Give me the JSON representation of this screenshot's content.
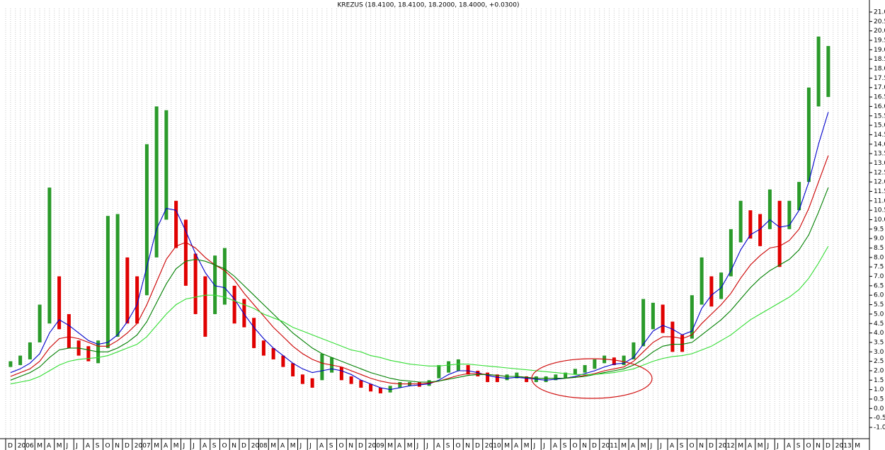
{
  "chart_data": {
    "type": "candlestick",
    "title": "KREZUS (18.4100, 18.4100, 18.2000, 18.4000, +0.0300)",
    "categories": [
      "D",
      "2006",
      null,
      "M",
      "A",
      "M",
      "J",
      "J",
      "A",
      "S",
      "O",
      "N",
      "D",
      "2007",
      null,
      "M",
      "A",
      "M",
      "J",
      "J",
      "A",
      "S",
      "O",
      "N",
      "D",
      "2008",
      null,
      "M",
      "A",
      "M",
      "J",
      "J",
      "A",
      "S",
      "O",
      "N",
      "D",
      "2009",
      null,
      "M",
      "A",
      "M",
      "J",
      "J",
      "A",
      "S",
      "O",
      "N",
      "D",
      "2010",
      null,
      "M",
      "A",
      "M",
      "J",
      "J",
      "A",
      "S",
      "O",
      "N",
      "D",
      "2011",
      null,
      "M",
      "A",
      "M",
      "J",
      "J",
      "A",
      "S",
      "O",
      "N",
      "D",
      "2012",
      null,
      "M",
      "A",
      "M",
      "J",
      "J",
      "A",
      "S",
      "O",
      "N",
      "D",
      "2013",
      null,
      "M"
    ],
    "high": [
      2.5,
      2.8,
      3.5,
      5.5,
      11.7,
      7.0,
      5.0,
      3.6,
      3.3,
      3.6,
      10.2,
      10.3,
      8.0,
      7.0,
      14.0,
      16.0,
      15.8,
      11.0,
      10.0,
      8.2,
      7.0,
      8.1,
      8.5,
      6.5,
      5.8,
      4.8,
      3.6,
      3.2,
      2.8,
      2.4,
      1.8,
      1.6,
      2.9,
      2.7,
      2.2,
      1.7,
      1.5,
      1.3,
      1.1,
      1.2,
      1.4,
      1.4,
      1.4,
      1.5,
      2.3,
      2.5,
      2.6,
      2.3,
      2.0,
      1.9,
      1.8,
      1.8,
      1.9,
      1.7,
      1.7,
      1.7,
      1.8,
      1.9,
      2.1,
      2.3,
      2.6,
      2.8,
      2.7,
      2.8,
      3.5,
      5.8,
      5.6,
      5.5,
      4.6,
      3.9,
      6.0,
      8.0,
      7.0,
      7.2,
      9.5,
      11.0,
      10.5,
      10.3,
      11.6,
      11.0,
      11.0,
      12.0,
      17.0,
      19.7,
      19.2,
      null,
      null,
      null
    ],
    "low": [
      2.2,
      2.3,
      2.6,
      3.5,
      4.5,
      4.2,
      3.2,
      2.8,
      2.5,
      2.4,
      3.2,
      3.8,
      4.5,
      4.5,
      6.0,
      8.0,
      10.0,
      8.5,
      6.5,
      5.0,
      3.8,
      5.0,
      5.5,
      4.5,
      4.3,
      3.2,
      2.8,
      2.6,
      2.2,
      1.7,
      1.3,
      1.1,
      1.5,
      1.9,
      1.5,
      1.3,
      1.1,
      0.9,
      0.8,
      0.85,
      1.1,
      1.2,
      1.15,
      1.2,
      1.6,
      1.9,
      2.0,
      1.8,
      1.7,
      1.4,
      1.4,
      1.5,
      1.6,
      1.4,
      1.4,
      1.4,
      1.5,
      1.6,
      1.8,
      1.9,
      2.1,
      2.4,
      2.3,
      2.3,
      2.6,
      3.3,
      4.2,
      4.0,
      3.0,
      3.0,
      3.7,
      5.5,
      5.4,
      5.8,
      7.0,
      8.8,
      9.0,
      8.6,
      9.5,
      7.5,
      9.5,
      10.5,
      12.0,
      16.0,
      16.5,
      null,
      null,
      null
    ],
    "up_color": "#2a9a2a",
    "down_color": "#e00000",
    "series": [
      {
        "color": "#0000cc",
        "values": [
          1.9,
          2.1,
          2.4,
          2.9,
          4.0,
          4.7,
          4.4,
          4.0,
          3.6,
          3.4,
          3.5,
          3.9,
          4.6,
          5.5,
          7.5,
          9.5,
          10.6,
          10.5,
          9.4,
          8.2,
          7.2,
          6.5,
          6.4,
          5.8,
          5.0,
          4.3,
          3.7,
          3.2,
          2.8,
          2.4,
          2.1,
          1.9,
          2.0,
          2.1,
          2.0,
          1.8,
          1.5,
          1.3,
          1.1,
          1.0,
          1.1,
          1.2,
          1.25,
          1.3,
          1.5,
          1.8,
          2.0,
          2.0,
          1.9,
          1.75,
          1.65,
          1.6,
          1.65,
          1.6,
          1.55,
          1.5,
          1.55,
          1.6,
          1.7,
          1.85,
          2.0,
          2.2,
          2.35,
          2.4,
          2.7,
          3.4,
          4.1,
          4.4,
          4.2,
          3.9,
          4.1,
          5.3,
          6.0,
          6.4,
          7.3,
          8.4,
          9.2,
          9.5,
          10.0,
          9.6,
          9.7,
          10.5,
          12.0,
          14.0,
          15.7,
          null,
          null,
          null
        ]
      },
      {
        "color": "#cc0000",
        "values": [
          1.7,
          1.9,
          2.1,
          2.5,
          3.2,
          3.7,
          3.8,
          3.7,
          3.5,
          3.3,
          3.3,
          3.6,
          4.0,
          4.5,
          5.5,
          6.7,
          7.9,
          8.6,
          8.8,
          8.5,
          8.0,
          7.6,
          7.3,
          6.8,
          6.1,
          5.5,
          4.9,
          4.3,
          3.8,
          3.3,
          2.9,
          2.6,
          2.4,
          2.3,
          2.2,
          2.0,
          1.8,
          1.6,
          1.45,
          1.35,
          1.3,
          1.3,
          1.3,
          1.35,
          1.45,
          1.6,
          1.75,
          1.85,
          1.85,
          1.8,
          1.75,
          1.7,
          1.7,
          1.65,
          1.6,
          1.6,
          1.6,
          1.6,
          1.65,
          1.75,
          1.85,
          2.0,
          2.1,
          2.2,
          2.5,
          3.0,
          3.5,
          3.8,
          3.8,
          3.7,
          3.9,
          4.5,
          5.0,
          5.5,
          6.1,
          6.9,
          7.6,
          8.1,
          8.5,
          8.6,
          8.9,
          9.5,
          10.6,
          12.0,
          13.4,
          null,
          null,
          null
        ]
      },
      {
        "color": "#008000",
        "values": [
          1.5,
          1.7,
          1.9,
          2.2,
          2.7,
          3.1,
          3.2,
          3.2,
          3.1,
          3.0,
          3.0,
          3.2,
          3.5,
          3.9,
          4.6,
          5.6,
          6.6,
          7.4,
          7.8,
          7.9,
          7.8,
          7.6,
          7.4,
          7.0,
          6.5,
          6.0,
          5.5,
          5.0,
          4.5,
          4.0,
          3.6,
          3.2,
          2.9,
          2.7,
          2.5,
          2.3,
          2.1,
          1.9,
          1.75,
          1.6,
          1.5,
          1.45,
          1.4,
          1.4,
          1.45,
          1.55,
          1.65,
          1.75,
          1.8,
          1.8,
          1.75,
          1.7,
          1.7,
          1.65,
          1.6,
          1.6,
          1.6,
          1.6,
          1.65,
          1.7,
          1.8,
          1.9,
          2.0,
          2.1,
          2.3,
          2.6,
          3.0,
          3.3,
          3.4,
          3.4,
          3.5,
          3.9,
          4.3,
          4.7,
          5.2,
          5.8,
          6.4,
          6.9,
          7.3,
          7.6,
          7.9,
          8.4,
          9.2,
          10.4,
          11.7,
          null,
          null,
          null
        ]
      },
      {
        "color": "#33dd33",
        "values": [
          1.3,
          1.4,
          1.5,
          1.7,
          2.0,
          2.3,
          2.5,
          2.6,
          2.65,
          2.7,
          2.8,
          3.0,
          3.2,
          3.4,
          3.8,
          4.4,
          5.0,
          5.5,
          5.8,
          5.9,
          6.0,
          6.0,
          5.9,
          5.7,
          5.5,
          5.3,
          5.0,
          4.8,
          4.6,
          4.3,
          4.1,
          3.9,
          3.7,
          3.5,
          3.3,
          3.1,
          3.0,
          2.8,
          2.7,
          2.55,
          2.45,
          2.35,
          2.3,
          2.25,
          2.25,
          2.3,
          2.35,
          2.35,
          2.3,
          2.25,
          2.2,
          2.15,
          2.1,
          2.05,
          2.0,
          1.95,
          1.9,
          1.85,
          1.8,
          1.8,
          1.8,
          1.85,
          1.9,
          2.0,
          2.1,
          2.3,
          2.5,
          2.65,
          2.75,
          2.8,
          2.9,
          3.1,
          3.3,
          3.6,
          3.9,
          4.3,
          4.7,
          5.0,
          5.3,
          5.6,
          5.9,
          6.3,
          6.9,
          7.7,
          8.6,
          null,
          null,
          null
        ]
      }
    ],
    "ylim": [
      -1,
      21
    ],
    "yticks": [
      {
        "value": 21,
        "label": "21.0"
      },
      {
        "value": 20.5,
        "label": "20.5"
      },
      {
        "value": 20,
        "label": "20.0"
      },
      {
        "value": 19.5,
        "label": "19.5"
      },
      {
        "value": 19,
        "label": "19.0"
      },
      {
        "value": 18.5,
        "label": "18.5"
      },
      {
        "value": 18,
        "label": "18.0"
      },
      {
        "value": 17.5,
        "label": "17.5"
      },
      {
        "value": 17,
        "label": "17.0"
      },
      {
        "value": 16.5,
        "label": "16.5"
      },
      {
        "value": 16,
        "label": "16.0"
      },
      {
        "value": 15.5,
        "label": "15.5"
      },
      {
        "value": 15,
        "label": "15.0"
      },
      {
        "value": 14.5,
        "label": "14.5"
      },
      {
        "value": 14,
        "label": "14.0"
      },
      {
        "value": 13.5,
        "label": "13.5"
      },
      {
        "value": 13,
        "label": "13.0"
      },
      {
        "value": 12.5,
        "label": "12.5"
      },
      {
        "value": 12,
        "label": "12.0"
      },
      {
        "value": 11.5,
        "label": "11.5"
      },
      {
        "value": 11,
        "label": "11.0"
      },
      {
        "value": 10.5,
        "label": "10.5"
      },
      {
        "value": 10,
        "label": "10.0"
      },
      {
        "value": 9.5,
        "label": "9.5"
      },
      {
        "value": 9,
        "label": "9.0"
      },
      {
        "value": 8.5,
        "label": "8.5"
      },
      {
        "value": 8,
        "label": "8.0"
      },
      {
        "value": 7.5,
        "label": "7.5"
      },
      {
        "value": 7,
        "label": "7.0"
      },
      {
        "value": 6.5,
        "label": "6.5"
      },
      {
        "value": 6,
        "label": "6.0"
      },
      {
        "value": 5.5,
        "label": "5.5"
      },
      {
        "value": 5,
        "label": "5.0"
      },
      {
        "value": 4.5,
        "label": "4.5"
      },
      {
        "value": 4,
        "label": "4.0"
      },
      {
        "value": 3.5,
        "label": "3.5"
      },
      {
        "value": 3,
        "label": "3.0"
      },
      {
        "value": 2.5,
        "label": "2.5"
      },
      {
        "value": 2,
        "label": "2.0"
      },
      {
        "value": 1.5,
        "label": "1.5"
      },
      {
        "value": 1,
        "label": "1.0"
      },
      {
        "value": 0.5,
        "label": "0.5"
      },
      {
        "value": 0,
        "label": "0.0"
      },
      {
        "value": -0.5,
        "label": "-0.5"
      },
      {
        "value": -1,
        "label": "-1.0"
      }
    ],
    "grid": true
  }
}
